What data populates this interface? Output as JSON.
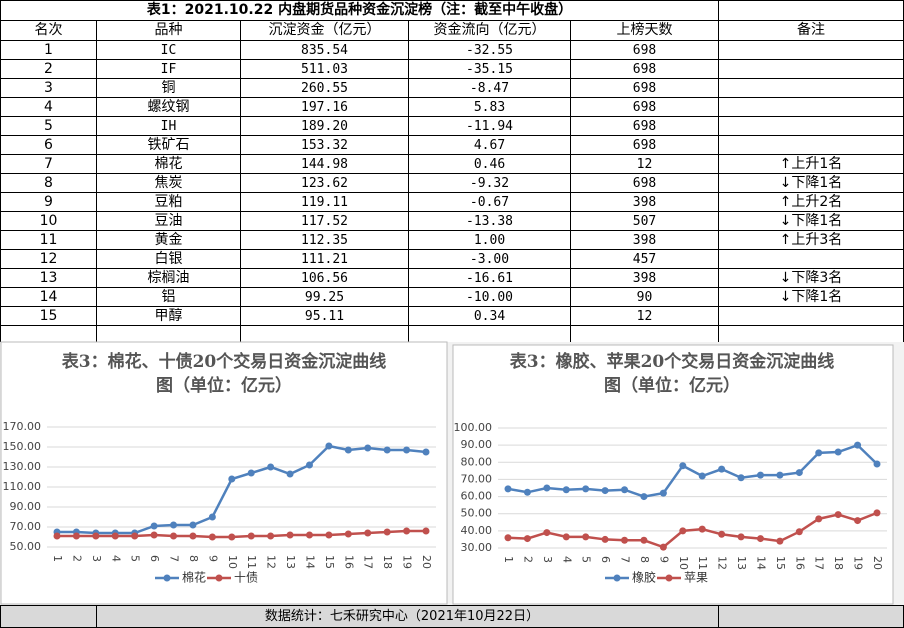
{
  "table": {
    "title": "表1：2021.10.22 内盘期货品种资金沉淀榜（注：截至中午收盘）",
    "header": [
      "名次",
      "品种",
      "沉淀资金（亿元）",
      "资金流向（亿元）",
      "上榜天数",
      "备注"
    ],
    "rows": [
      [
        "1",
        "IC",
        "835.54",
        "-32.55",
        "698"
      ],
      [
        "2",
        "IF",
        "511.03",
        "-35.15",
        "698"
      ],
      [
        "3",
        "铜",
        "260.55",
        "-8.47",
        "698"
      ],
      [
        "4",
        "螺纹钢",
        "197.16",
        "5.83",
        "698"
      ],
      [
        "5",
        "IH",
        "189.20",
        "-11.94",
        "698"
      ],
      [
        "6",
        "铁矿石",
        "153.32",
        "4.67",
        "698"
      ],
      [
        "7",
        "棉花",
        "144.98",
        "0.46",
        "12",
        "↑上升1名"
      ],
      [
        "8",
        "焦炭",
        "123.62",
        "-9.32",
        "698",
        "↓下降1名"
      ],
      [
        "9",
        "豆粕",
        "119.11",
        "-0.67",
        "398",
        "↑上升2名"
      ],
      [
        "10",
        "豆油",
        "117.52",
        "-13.38",
        "507",
        "↓下降1名"
      ],
      [
        "11",
        "黄金",
        "112.35",
        "1.00",
        "398",
        "↑上升3名"
      ],
      [
        "12",
        "白银",
        "111.21",
        "-3.00",
        "457"
      ],
      [
        "13",
        "棕榈油",
        "106.56",
        "-16.61",
        "398",
        "↓下降3名"
      ],
      [
        "14",
        "铝",
        "99.25",
        "-10.00",
        "90",
        "↓下降1名"
      ],
      [
        "15",
        "甲醇",
        "95.11",
        "0.34",
        "12"
      ]
    ]
  },
  "footer": "数据统计：七禾研究中心（2021年10月22日）",
  "chart_data": [
    {
      "type": "line",
      "title": "表3：棉花、十债20个交易日资金沉淀曲线图（单位：亿元）",
      "categories": [
        "1",
        "2",
        "3",
        "4",
        "5",
        "6",
        "7",
        "8",
        "9",
        "10",
        "11",
        "12",
        "13",
        "14",
        "15",
        "16",
        "17",
        "18",
        "19",
        "20"
      ],
      "series": [
        {
          "name": "棉花",
          "color": "#4f81bd",
          "values": [
            65,
            65,
            64,
            64,
            64,
            71,
            72,
            72,
            80,
            118,
            124,
            130,
            123,
            132,
            151,
            147,
            149,
            147,
            147,
            145
          ]
        },
        {
          "name": "十债",
          "color": "#c0504d",
          "values": [
            61,
            61,
            61,
            61,
            61,
            62,
            61,
            61,
            60,
            60,
            61,
            61,
            62,
            62,
            62,
            63,
            64,
            65,
            66,
            66
          ]
        }
      ],
      "ylim": [
        50,
        170
      ],
      "yticks": [
        {
          "value": 50,
          "label": "50.00"
        },
        {
          "value": 70,
          "label": "70.00"
        },
        {
          "value": 90,
          "label": "90.00"
        },
        {
          "value": 110,
          "label": "110.00"
        },
        {
          "value": 130,
          "label": "130.00"
        },
        {
          "value": 150,
          "label": "150.00"
        },
        {
          "value": 170,
          "label": "170.00"
        }
      ],
      "grid": true,
      "legend": "bottom"
    },
    {
      "type": "line",
      "title": "表3：橡胶、苹果20个交易日资金沉淀曲线图（单位：亿元）",
      "categories": [
        "1",
        "2",
        "3",
        "4",
        "5",
        "6",
        "7",
        "8",
        "9",
        "10",
        "11",
        "12",
        "13",
        "14",
        "15",
        "16",
        "17",
        "18",
        "19",
        "20"
      ],
      "series": [
        {
          "name": "橡胶",
          "color": "#4f81bd",
          "values": [
            64.5,
            62.5,
            65,
            64,
            64.5,
            63.5,
            64,
            60,
            62,
            78,
            72,
            76,
            71,
            72.5,
            72.5,
            74,
            85.5,
            86,
            90,
            79
          ]
        },
        {
          "name": "苹果",
          "color": "#c0504d",
          "values": [
            36,
            35.5,
            39,
            36.5,
            36.5,
            35,
            34.5,
            34.5,
            30.5,
            40,
            41,
            38,
            36.5,
            35.5,
            34,
            39.5,
            47,
            49.5,
            46,
            50.5
          ]
        }
      ],
      "ylim": [
        30,
        100
      ],
      "yticks": [
        {
          "value": 30,
          "label": "30.00"
        },
        {
          "value": 40,
          "label": "40.00"
        },
        {
          "value": 50,
          "label": "50.00"
        },
        {
          "value": 60,
          "label": "60.00"
        },
        {
          "value": 70,
          "label": "70.00"
        },
        {
          "value": 80,
          "label": "80.00"
        },
        {
          "value": 90,
          "label": "90.00"
        },
        {
          "value": 100,
          "label": "100.00"
        }
      ],
      "grid": true,
      "legend": "bottom"
    }
  ]
}
